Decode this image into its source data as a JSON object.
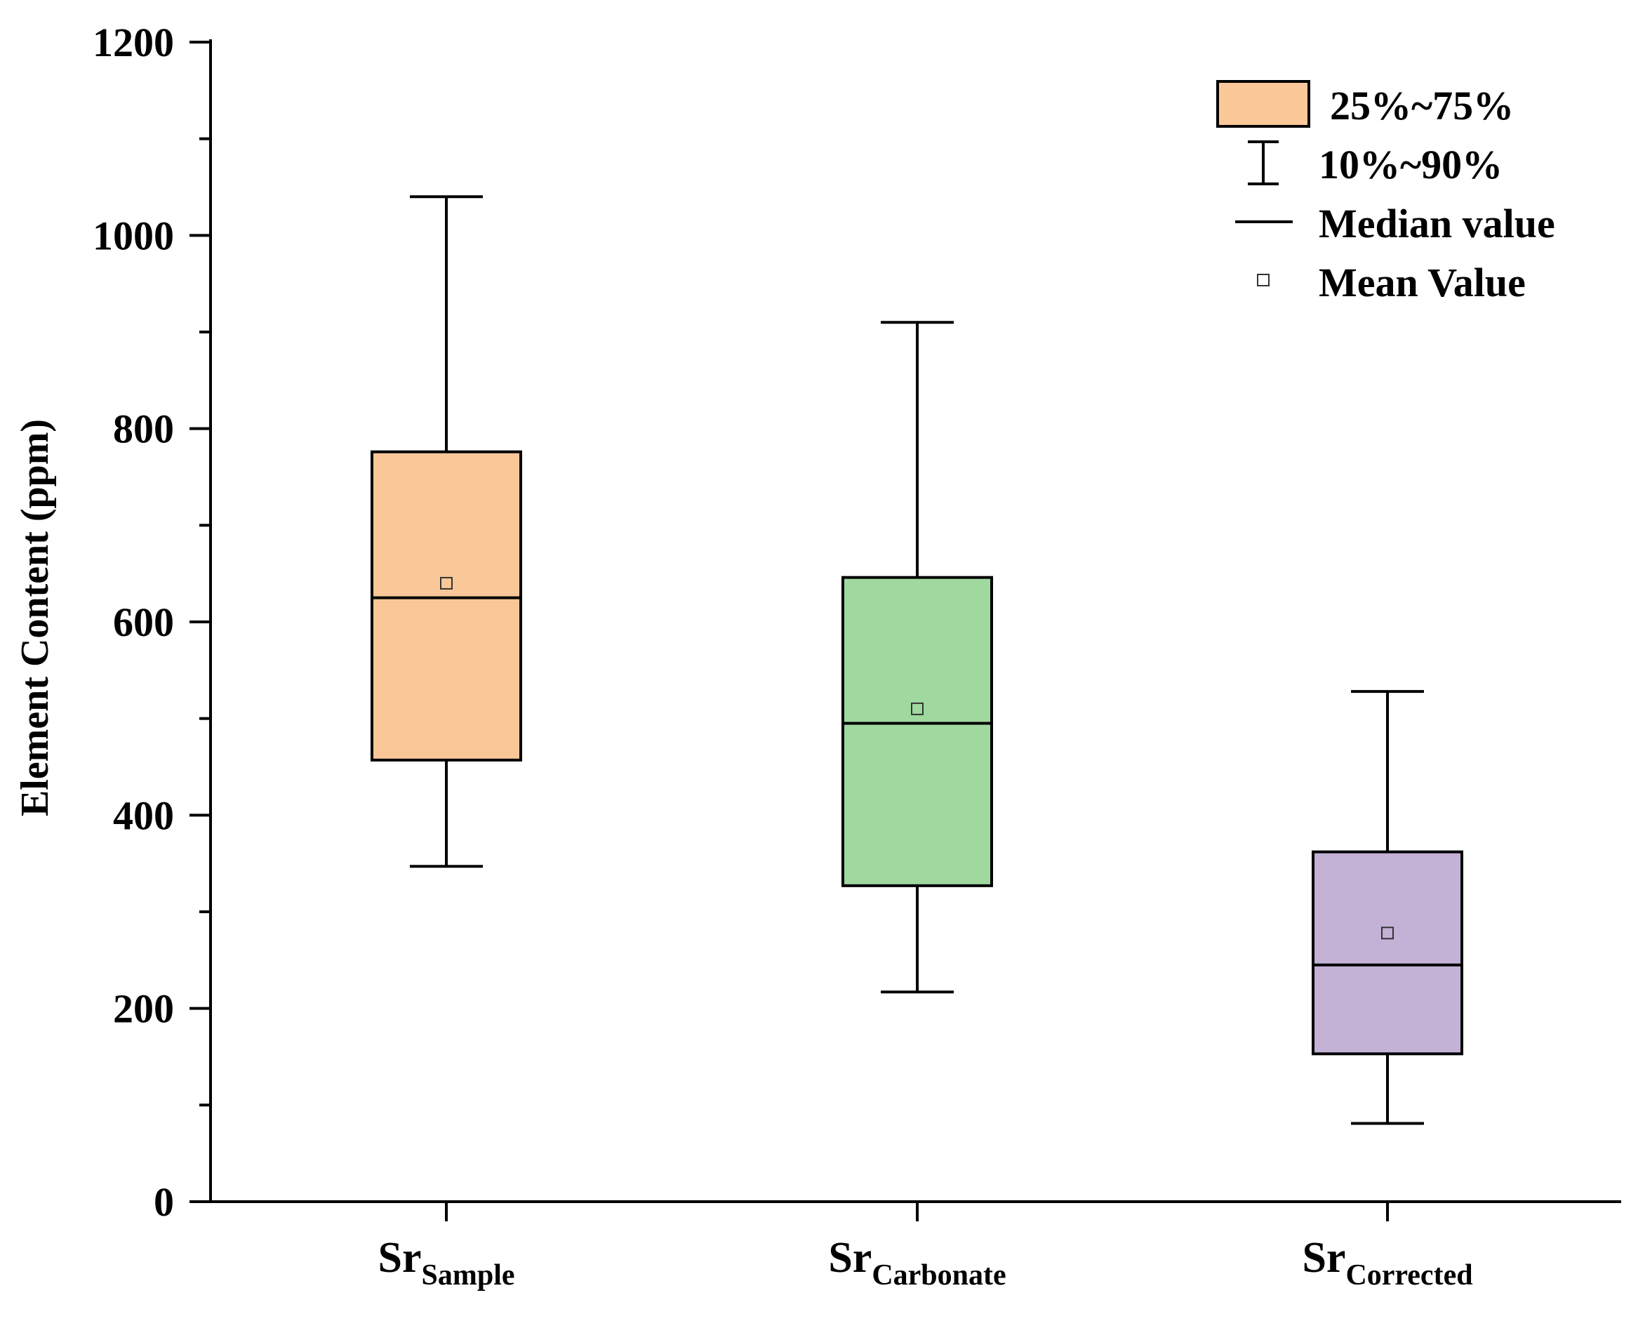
{
  "chart_data": {
    "type": "box",
    "title": "",
    "xlabel": "",
    "ylabel": "Element Content (ppm)",
    "ylim": [
      0,
      1200
    ],
    "yticks": [
      0,
      200,
      400,
      600,
      800,
      1000,
      1200
    ],
    "yminor_step": 100,
    "grid": false,
    "legend_position": "top-right",
    "legend": {
      "box": "25%~75%",
      "whisker": "10%~90%",
      "median": "Median value",
      "mean": "Mean Value"
    },
    "categories": [
      {
        "main": "Sr",
        "sub": "Sample",
        "p10": 347,
        "q1": 457,
        "median": 625,
        "q3": 776,
        "p90": 1040,
        "mean": 640,
        "color": "#FAC898"
      },
      {
        "main": "Sr",
        "sub": "Carbonate",
        "p10": 217,
        "q1": 327,
        "median": 495,
        "q3": 646,
        "p90": 910,
        "mean": 510,
        "color": "#A0D9A0"
      },
      {
        "main": "Sr",
        "sub": "Corrected",
        "p10": 81,
        "q1": 153,
        "median": 245,
        "q3": 362,
        "p90": 528,
        "mean": 278,
        "color": "#C4B1D6"
      }
    ],
    "legend_color": "#FAC898"
  }
}
